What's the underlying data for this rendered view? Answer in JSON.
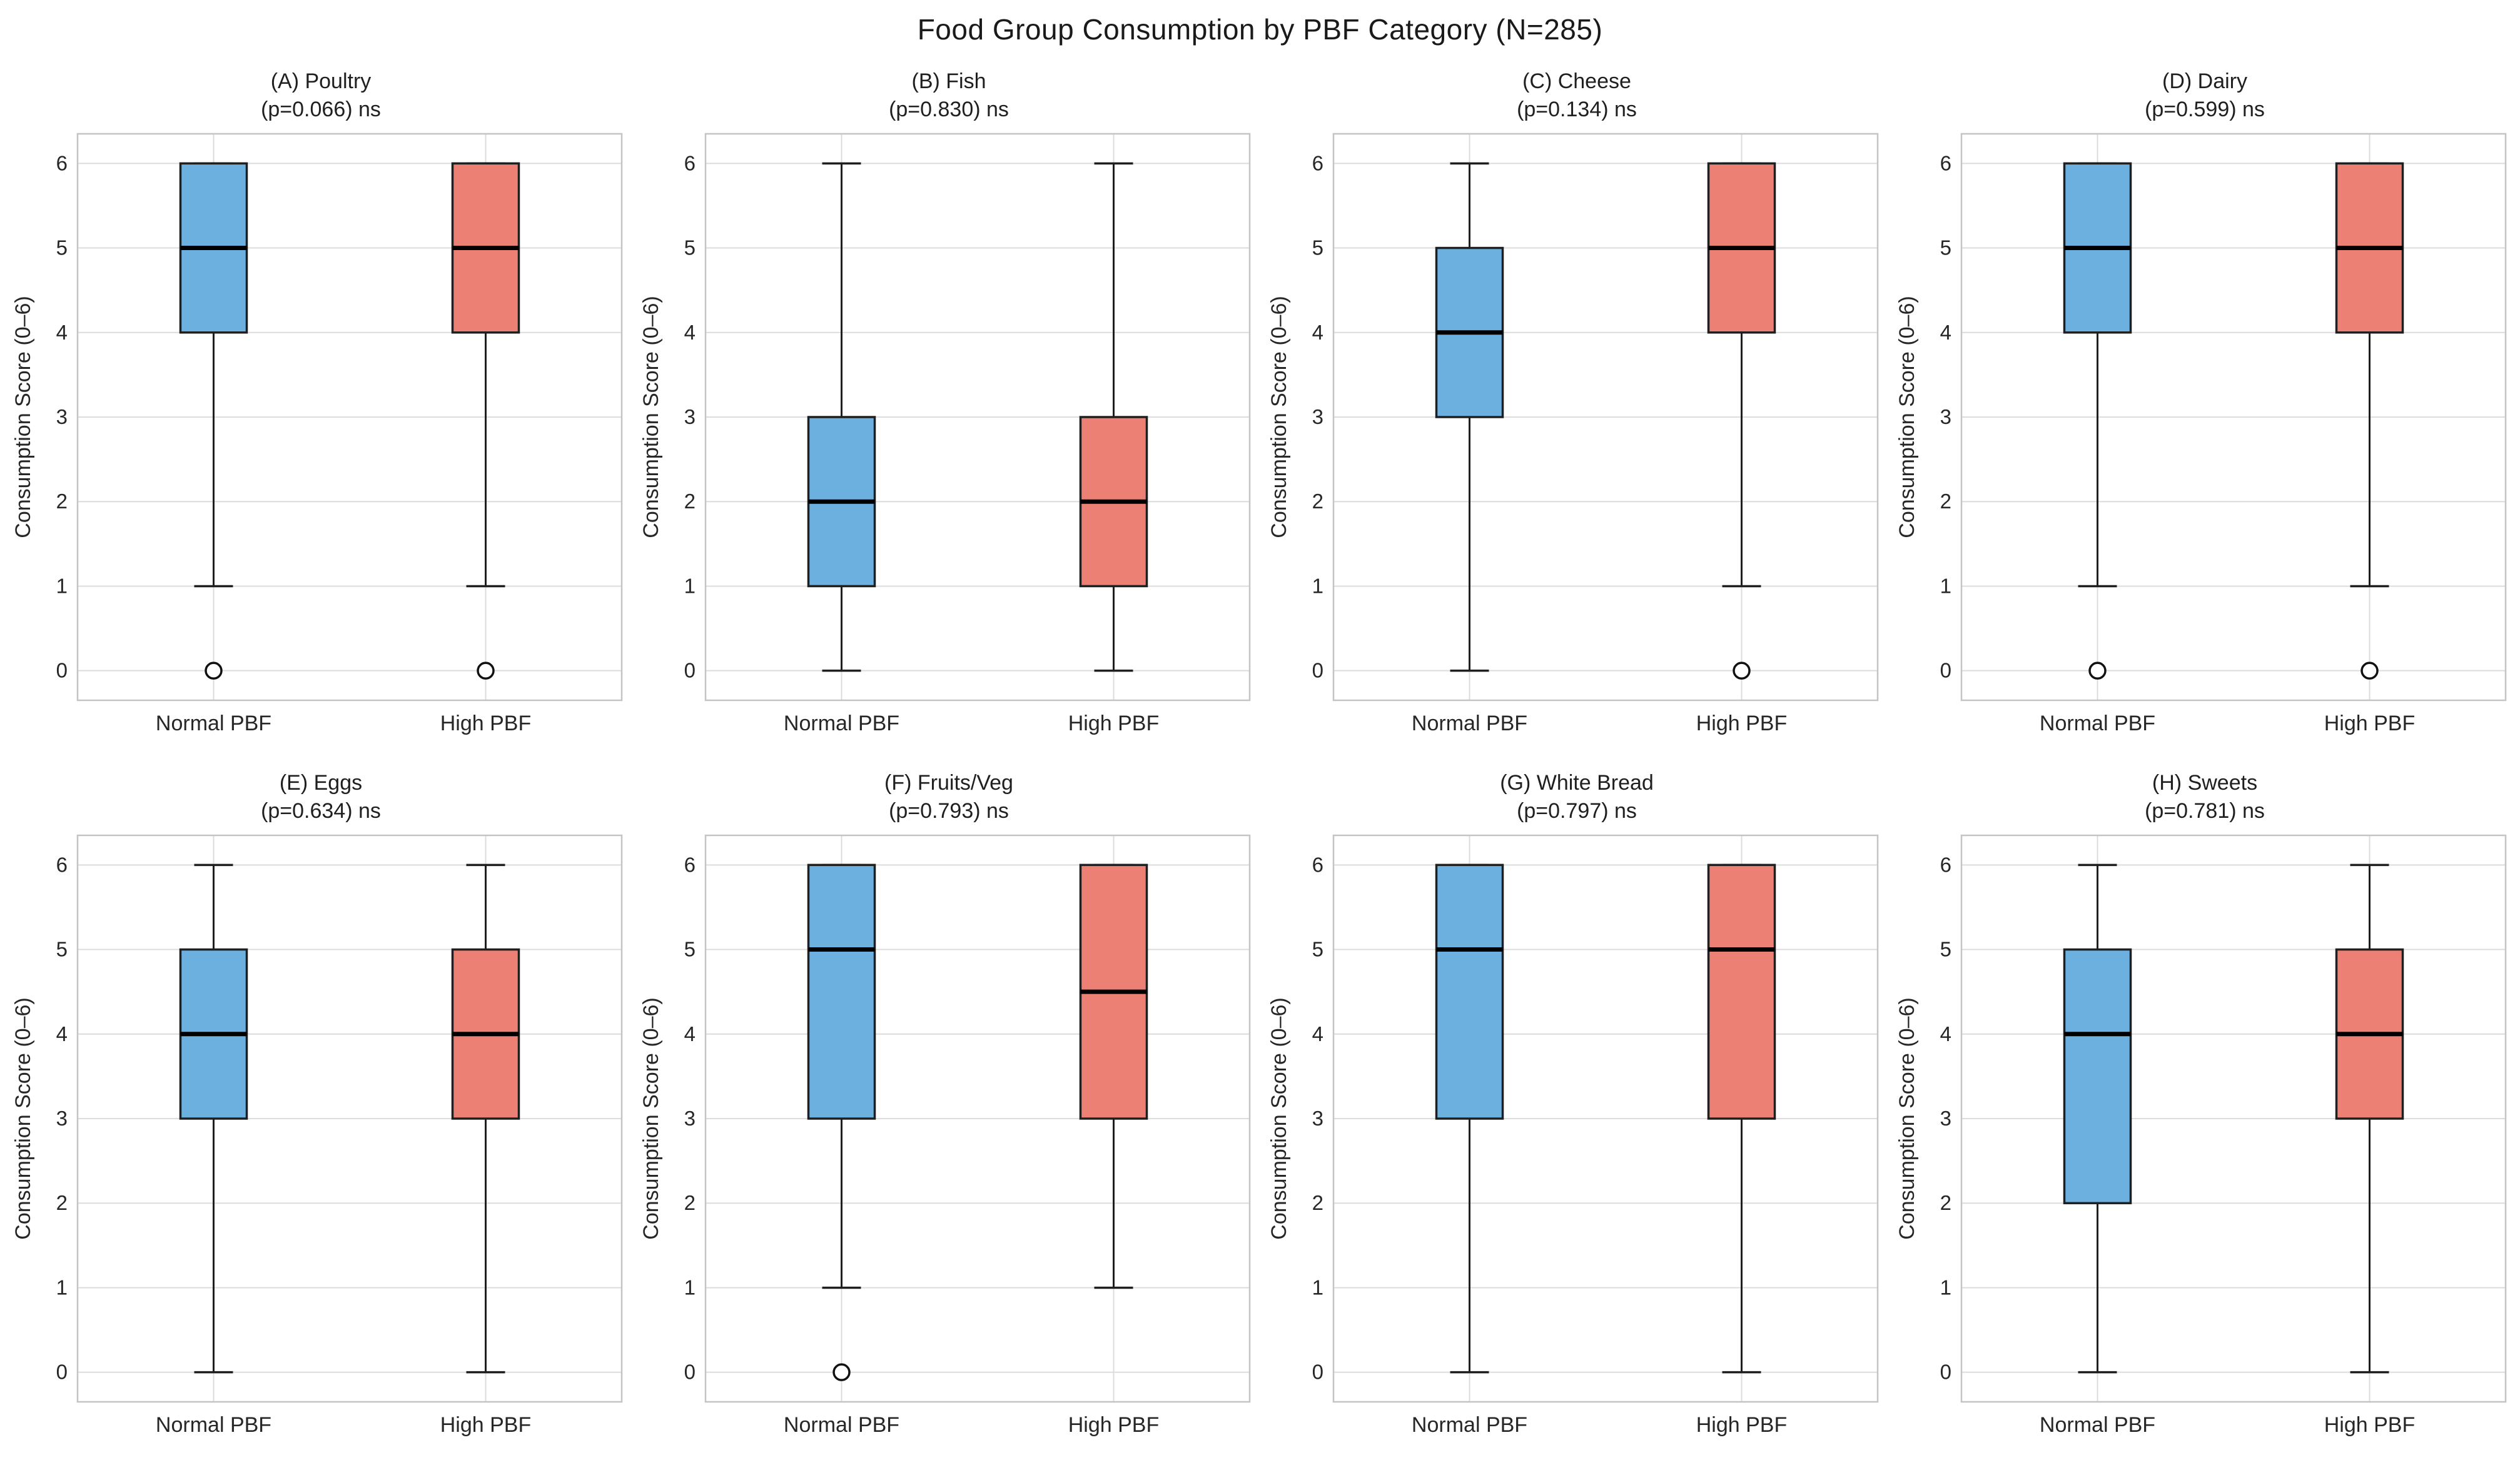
{
  "chart_data": {
    "type": "boxplot",
    "title": "Food Group Consumption by PBF Category (N=285)",
    "ylabel": "Consumption Score (0–6)",
    "yticks": [
      0,
      1,
      2,
      3,
      4,
      5,
      6
    ],
    "ylim": [
      -0.35,
      6.35
    ],
    "grid": "on",
    "categories": [
      "Normal PBF",
      "High PBF"
    ],
    "panels": [
      {
        "id": "A",
        "label": "(A) Poultry",
        "pvalue": "(p=0.066) ns",
        "series": [
          {
            "name": "Normal PBF",
            "whisker_low": 1,
            "q1": 4,
            "median": 5,
            "q3": 6,
            "whisker_high": 6,
            "outliers": [
              0
            ]
          },
          {
            "name": "High PBF",
            "whisker_low": 1,
            "q1": 4,
            "median": 5,
            "q3": 6,
            "whisker_high": 6,
            "outliers": [
              0
            ]
          }
        ]
      },
      {
        "id": "B",
        "label": "(B) Fish",
        "pvalue": "(p=0.830) ns",
        "series": [
          {
            "name": "Normal PBF",
            "whisker_low": 0,
            "q1": 1,
            "median": 2,
            "q3": 3,
            "whisker_high": 6,
            "outliers": []
          },
          {
            "name": "High PBF",
            "whisker_low": 0,
            "q1": 1,
            "median": 2,
            "q3": 3,
            "whisker_high": 6,
            "outliers": []
          }
        ]
      },
      {
        "id": "C",
        "label": "(C) Cheese",
        "pvalue": "(p=0.134) ns",
        "series": [
          {
            "name": "Normal PBF",
            "whisker_low": 0,
            "q1": 3,
            "median": 4,
            "q3": 5,
            "whisker_high": 6,
            "outliers": []
          },
          {
            "name": "High PBF",
            "whisker_low": 1,
            "q1": 4,
            "median": 5,
            "q3": 6,
            "whisker_high": 6,
            "outliers": [
              0
            ]
          }
        ]
      },
      {
        "id": "D",
        "label": "(D) Dairy",
        "pvalue": "(p=0.599) ns",
        "series": [
          {
            "name": "Normal PBF",
            "whisker_low": 1,
            "q1": 4,
            "median": 5,
            "q3": 6,
            "whisker_high": 6,
            "outliers": [
              0
            ]
          },
          {
            "name": "High PBF",
            "whisker_low": 1,
            "q1": 4,
            "median": 5,
            "q3": 6,
            "whisker_high": 6,
            "outliers": [
              0
            ]
          }
        ]
      },
      {
        "id": "E",
        "label": "(E) Eggs",
        "pvalue": "(p=0.634) ns",
        "series": [
          {
            "name": "Normal PBF",
            "whisker_low": 0,
            "q1": 3,
            "median": 4,
            "q3": 5,
            "whisker_high": 6,
            "outliers": []
          },
          {
            "name": "High PBF",
            "whisker_low": 0,
            "q1": 3,
            "median": 4,
            "q3": 5,
            "whisker_high": 6,
            "outliers": []
          }
        ]
      },
      {
        "id": "F",
        "label": "(F) Fruits/Veg",
        "pvalue": "(p=0.793) ns",
        "series": [
          {
            "name": "Normal PBF",
            "whisker_low": 1,
            "q1": 3,
            "median": 5,
            "q3": 6,
            "whisker_high": 6,
            "outliers": [
              0
            ]
          },
          {
            "name": "High PBF",
            "whisker_low": 1,
            "q1": 3,
            "median": 4.5,
            "q3": 6,
            "whisker_high": 6,
            "outliers": []
          }
        ]
      },
      {
        "id": "G",
        "label": "(G) White Bread",
        "pvalue": "(p=0.797) ns",
        "series": [
          {
            "name": "Normal PBF",
            "whisker_low": 0,
            "q1": 3,
            "median": 5,
            "q3": 6,
            "whisker_high": 6,
            "outliers": []
          },
          {
            "name": "High PBF",
            "whisker_low": 0,
            "q1": 3,
            "median": 5,
            "q3": 6,
            "whisker_high": 6,
            "outliers": []
          }
        ]
      },
      {
        "id": "H",
        "label": "(H) Sweets",
        "pvalue": "(p=0.781) ns",
        "series": [
          {
            "name": "Normal PBF",
            "whisker_low": 0,
            "q1": 2,
            "median": 4,
            "q3": 5,
            "whisker_high": 6,
            "outliers": []
          },
          {
            "name": "High PBF",
            "whisker_low": 0,
            "q1": 3,
            "median": 4,
            "q3": 5,
            "whisker_high": 6,
            "outliers": []
          }
        ]
      }
    ]
  },
  "colors": {
    "normal_box": "#6CB0E0",
    "high_box": "#EC8074",
    "box_edge": "#1F1F1F",
    "median": "#000000",
    "grid": "#DCDCDC",
    "spine": "#C4C4C4",
    "outlier_fill": "#FFFFFF",
    "outlier_edge": "#111111",
    "text": "#262626"
  }
}
